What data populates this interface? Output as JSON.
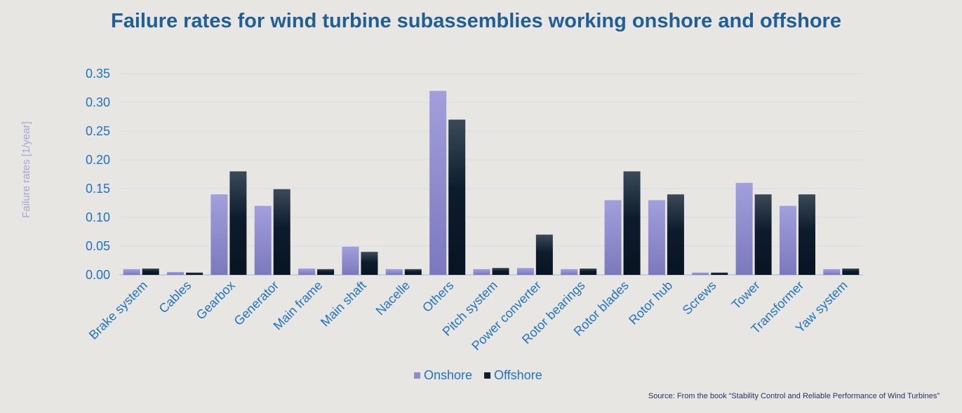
{
  "chart_data": {
    "type": "bar",
    "title": "Failure rates for wind turbine subassemblies working onshore and offshore",
    "ylabel": "Failure rates [1/year]",
    "xlabel": "",
    "ylim": [
      0,
      0.35
    ],
    "yticks": [
      "0.00",
      "0.05",
      "0.10",
      "0.15",
      "0.20",
      "0.25",
      "0.30",
      "0.35"
    ],
    "grid": true,
    "legend_position": "bottom",
    "categories": [
      "Brake system",
      "Cables",
      "Gearbox",
      "Generator",
      "Main frame",
      "Main shaft",
      "Nacelle",
      "Others",
      "Pitch system",
      "Power converter",
      "Rotor bearings",
      "Rotor blades",
      "Rotor hub",
      "Screws",
      "Tower",
      "Transformer",
      "Yaw system"
    ],
    "series": [
      {
        "name": "Onshore",
        "color": "#8f8acb",
        "values": [
          0.01,
          0.005,
          0.14,
          0.12,
          0.011,
          0.049,
          0.01,
          0.32,
          0.01,
          0.012,
          0.01,
          0.13,
          0.13,
          0.004,
          0.16,
          0.12,
          0.01
        ]
      },
      {
        "name": "Offshore",
        "color": "#0e1e30",
        "values": [
          0.011,
          0.004,
          0.18,
          0.149,
          0.01,
          0.04,
          0.01,
          0.27,
          0.012,
          0.07,
          0.011,
          0.18,
          0.14,
          0.004,
          0.14,
          0.14,
          0.011
        ]
      }
    ]
  },
  "source": "Source: From the book “Stability Control and Reliable Performance of Wind Turbines”"
}
